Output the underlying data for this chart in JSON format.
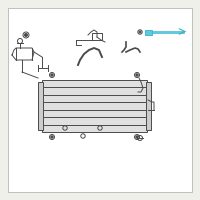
{
  "bg_color": "#f0f0eb",
  "line_color": "#4a4a4a",
  "highlight_color": "#3ab0c8",
  "highlight_color2": "#5bcce0",
  "white": "#ffffff",
  "fig_width": 2.0,
  "fig_height": 2.0,
  "dpi": 100
}
